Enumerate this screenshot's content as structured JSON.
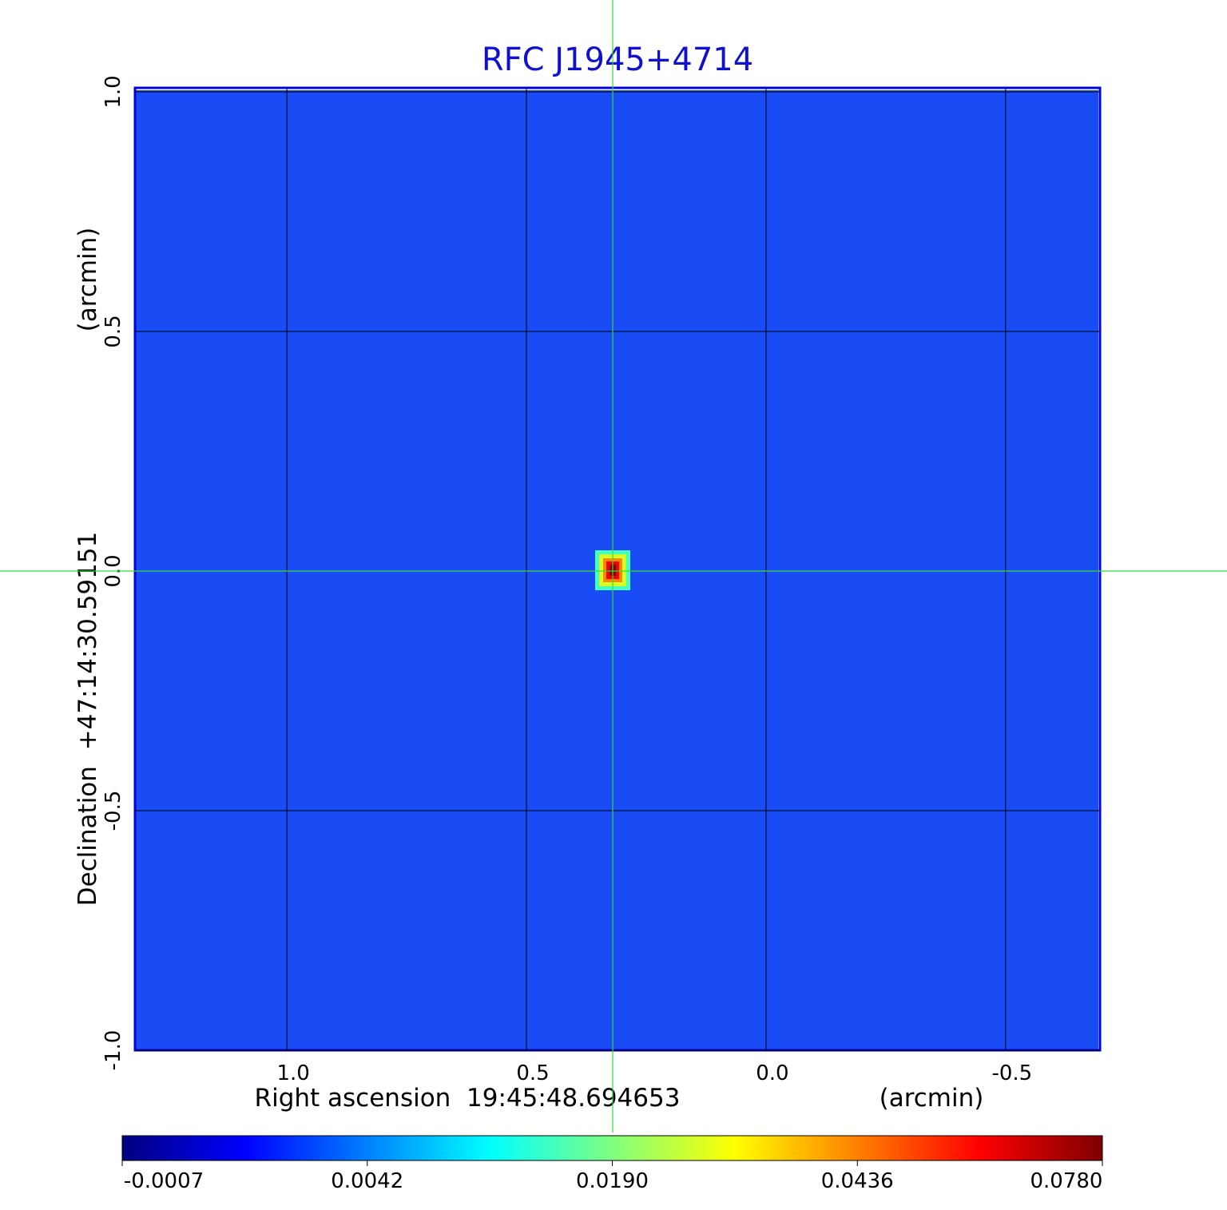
{
  "chart_data": {
    "type": "image",
    "title": "RFC J1945+4714",
    "x_label": "Right ascension  19:45:48.694653",
    "x_unit": "(arcmin)",
    "y_label": "Declination  +47:14:30.59151",
    "y_unit": "(arcmin)",
    "xlim": [
      1.317,
      -0.697
    ],
    "xticks": [
      {
        "value": 1,
        "label": "1.0"
      },
      0.5,
      {
        "value": 0,
        "label": "0.0"
      },
      -0.5
    ],
    "ylim": [
      -1,
      1
    ],
    "yticks": [
      {
        "value": 1,
        "label": "1.0"
      },
      0.5,
      {
        "value": 0,
        "label": "0.0"
      },
      -0.5,
      {
        "value": -1,
        "label": "-1.0"
      }
    ],
    "grid": true,
    "colormap": "jet",
    "colorbar_ticks": [
      -0.0007,
      0.0042,
      {
        "value": 0.019,
        "label": "0.0190"
      },
      0.0436,
      {
        "value": 0.078,
        "label": "0.0780"
      }
    ],
    "sources": [
      {
        "x": 0.32,
        "y": 0.0,
        "peak": 0.078
      }
    ]
  }
}
